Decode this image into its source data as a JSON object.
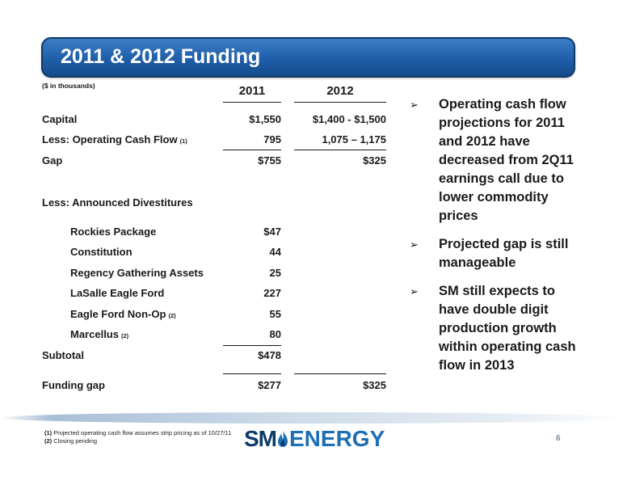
{
  "title": "2011 & 2012 Funding",
  "units_note": "($ in thousands)",
  "columns": [
    "2011",
    "2012"
  ],
  "rows": {
    "capital": {
      "label": "Capital",
      "v2011": "$1,550",
      "v2012": "$1,400 - $1,500"
    },
    "ocf": {
      "label": "Less: Operating Cash Flow",
      "note": "(1)",
      "v2011": "795",
      "v2012": "1,075 – 1,175"
    },
    "gap": {
      "label": "Gap",
      "v2011": "$755",
      "v2012": "$325"
    },
    "divestitures": {
      "label": "Less: Announced Divestitures"
    },
    "rockies": {
      "label": "Rockies Package",
      "v2011": "$47"
    },
    "constitution": {
      "label": "Constitution",
      "v2011": "44"
    },
    "regency": {
      "label": "Regency Gathering Assets",
      "v2011": "25"
    },
    "lasalle": {
      "label": "LaSalle Eagle Ford",
      "v2011": "227"
    },
    "eagle_nonop": {
      "label": "Eagle Ford Non-Op",
      "note": "(2)",
      "v2011": "55"
    },
    "marcellus": {
      "label": "Marcellus",
      "note": "(2)",
      "v2011": "80"
    },
    "subtotal": {
      "label": "Subtotal",
      "v2011": "$478"
    },
    "funding_gap": {
      "label": "Funding gap",
      "v2011": "$277",
      "v2012": "$325"
    }
  },
  "bullets": [
    "Operating cash flow projections for 2011 and 2012 have decreased from 2Q11 earnings call due to lower commodity prices",
    "Projected gap is still manageable",
    "SM still expects to have double digit production growth within operating cash flow in 2013"
  ],
  "bullet_icon": "arrow-bullet-icon",
  "footnotes": [
    {
      "num": "(1)",
      "text": "Projected operating cash flow assumes strip pricing as of 10/27/11"
    },
    {
      "num": "(2)",
      "text": "Closing pending"
    }
  ],
  "logo": {
    "part1": "SM",
    "part2": "ENERGY"
  },
  "page_number": "6",
  "colors": {
    "title_bar": "#1f5ea8",
    "title_border": "#0d3a66",
    "logo_dark": "#0d3a66",
    "logo_blue": "#1f6fb3"
  }
}
